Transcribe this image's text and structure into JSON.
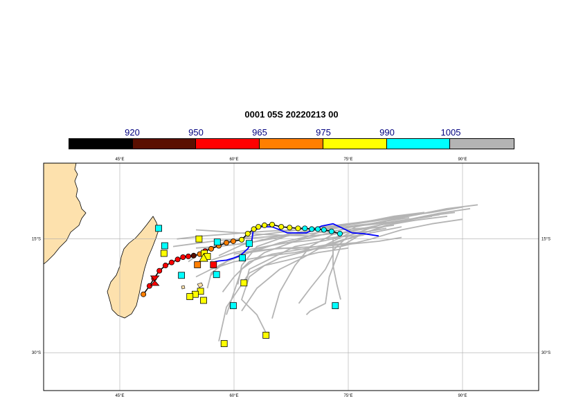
{
  "title": "0001 05S 20220213 00",
  "colorbar": {
    "labels": [
      "920",
      "950",
      "965",
      "975",
      "990",
      "1005"
    ],
    "colors": [
      "#000000",
      "#5a0f00",
      "#ff0000",
      "#ff7f00",
      "#ffff00",
      "#00ffff",
      "#b4b4b4"
    ]
  },
  "map": {
    "lon_range": [
      35,
      100
    ],
    "lat_range": [
      -35,
      -5
    ],
    "lon_ticks": [
      "45°E",
      "60°E",
      "75°E",
      "90°E"
    ],
    "lat_ticks": [
      "15°S",
      "30°S"
    ],
    "land_color": "#fde1ad",
    "ocean_color": "#ffffff",
    "grid_color": "#aaaaaa"
  },
  "chart_data": {
    "type": "scatter",
    "title": "0001 05S 20220213 00",
    "xlabel": "",
    "ylabel": "",
    "xlim": [
      35,
      100
    ],
    "ylim": [
      -35,
      -5
    ],
    "observed_track": {
      "line_color": "#000000",
      "points": [
        {
          "lon": 48.1,
          "lat": -22.3,
          "color": "#ff7f00"
        },
        {
          "lon": 48.9,
          "lat": -21.2,
          "color": "#ff0000"
        },
        {
          "lon": 49.5,
          "lat": -20.2,
          "color": "#ff0000"
        },
        {
          "lon": 50.2,
          "lat": -19.2,
          "color": "#ff0000"
        },
        {
          "lon": 51.0,
          "lat": -18.5,
          "color": "#ff0000"
        },
        {
          "lon": 51.8,
          "lat": -18.1,
          "color": "#ff0000"
        },
        {
          "lon": 52.6,
          "lat": -17.7,
          "color": "#ff0000"
        },
        {
          "lon": 53.3,
          "lat": -17.4,
          "color": "#ff0000"
        },
        {
          "lon": 54.0,
          "lat": -17.3,
          "color": "#ff0000"
        },
        {
          "lon": 54.7,
          "lat": -17.2,
          "color": "#5a0f00"
        },
        {
          "lon": 55.5,
          "lat": -17.0,
          "color": "#ff7f00"
        },
        {
          "lon": 56.2,
          "lat": -16.6,
          "color": "#ff0000"
        },
        {
          "lon": 57.0,
          "lat": -16.3,
          "color": "#ff7f00"
        },
        {
          "lon": 58.0,
          "lat": -15.9,
          "color": "#ff7f00"
        },
        {
          "lon": 59.0,
          "lat": -15.5,
          "color": "#ff7f00"
        },
        {
          "lon": 59.9,
          "lat": -15.3,
          "color": "#ff7f00"
        },
        {
          "lon": 61.0,
          "lat": -15.1,
          "color": "#ffff00"
        },
        {
          "lon": 61.8,
          "lat": -14.3,
          "color": "#ffff00"
        },
        {
          "lon": 62.6,
          "lat": -13.7,
          "color": "#ffff00"
        },
        {
          "lon": 63.2,
          "lat": -13.4,
          "color": "#ffff00"
        },
        {
          "lon": 64.0,
          "lat": -13.2,
          "color": "#ffff00"
        },
        {
          "lon": 65.0,
          "lat": -13.1,
          "color": "#ffff00"
        },
        {
          "lon": 66.2,
          "lat": -13.4,
          "color": "#ffff00"
        },
        {
          "lon": 67.3,
          "lat": -13.5,
          "color": "#ffff00"
        },
        {
          "lon": 68.4,
          "lat": -13.6,
          "color": "#ffff00"
        },
        {
          "lon": 69.3,
          "lat": -13.6,
          "color": "#00ffff"
        },
        {
          "lon": 70.2,
          "lat": -13.7,
          "color": "#00ffff"
        },
        {
          "lon": 71.0,
          "lat": -13.7,
          "color": "#00ffff"
        },
        {
          "lon": 71.8,
          "lat": -13.8,
          "color": "#00ffff"
        },
        {
          "lon": 72.8,
          "lat": -14.0,
          "color": "#00ffff"
        },
        {
          "lon": 73.9,
          "lat": -14.3,
          "color": "#00ffff"
        }
      ]
    },
    "forecast_track": {
      "line_color": "#0000ff",
      "points": [
        {
          "lon": 79.0,
          "lat": -14.6
        },
        {
          "lon": 77.0,
          "lat": -14.3
        },
        {
          "lon": 75.5,
          "lat": -14.2
        },
        {
          "lon": 74.5,
          "lat": -13.7
        },
        {
          "lon": 73.0,
          "lat": -13.0
        },
        {
          "lon": 71.5,
          "lat": -13.3
        },
        {
          "lon": 69.5,
          "lat": -14.2
        },
        {
          "lon": 67.0,
          "lat": -14.2
        },
        {
          "lon": 65.0,
          "lat": -13.4
        },
        {
          "lon": 63.5,
          "lat": -13.4
        },
        {
          "lon": 62.5,
          "lat": -14.0
        },
        {
          "lon": 62.3,
          "lat": -15.5
        },
        {
          "lon": 61.8,
          "lat": -16.3
        },
        {
          "lon": 60.8,
          "lat": -17.2
        },
        {
          "lon": 60.0,
          "lat": -17.5
        },
        {
          "lon": 59.0,
          "lat": -17.8
        },
        {
          "lon": 58.0,
          "lat": -17.9
        },
        {
          "lon": 57.5,
          "lat": -18.0
        }
      ]
    },
    "best_track_markers": [
      {
        "symbol": "hourglass",
        "lon": 49.6,
        "lat": -20.5,
        "color": "#ff0000"
      },
      {
        "symbol": "triangle",
        "lon": 56.0,
        "lat": -17.5,
        "color": "#ffff00"
      }
    ],
    "position_markers": [
      {
        "lon": 50.1,
        "lat": -13.6,
        "color": "#00ffff"
      },
      {
        "lon": 50.9,
        "lat": -15.9,
        "color": "#00ffff"
      },
      {
        "lon": 50.8,
        "lat": -16.9,
        "color": "#ffff00"
      },
      {
        "lon": 55.4,
        "lat": -15.0,
        "color": "#ffff00"
      },
      {
        "lon": 57.8,
        "lat": -15.4,
        "color": "#00ffff"
      },
      {
        "lon": 56.1,
        "lat": -16.9,
        "color": "#ffff00"
      },
      {
        "lon": 56.5,
        "lat": -17.3,
        "color": "#ffff00"
      },
      {
        "lon": 55.2,
        "lat": -18.4,
        "color": "#ff7f00"
      },
      {
        "lon": 57.3,
        "lat": -18.4,
        "color": "#ff0000"
      },
      {
        "lon": 62.0,
        "lat": -15.6,
        "color": "#00ffff"
      },
      {
        "lon": 61.1,
        "lat": -17.5,
        "color": "#00ffff"
      },
      {
        "lon": 53.1,
        "lat": -19.8,
        "color": "#00ffff"
      },
      {
        "lon": 57.7,
        "lat": -19.7,
        "color": "#00ffff"
      },
      {
        "lon": 61.3,
        "lat": -20.8,
        "color": "#ffff00"
      },
      {
        "lon": 55.6,
        "lat": -21.9,
        "color": "#ffff00"
      },
      {
        "lon": 54.9,
        "lat": -22.3,
        "color": "#ffff00"
      },
      {
        "lon": 54.2,
        "lat": -22.6,
        "color": "#ffff00"
      },
      {
        "lon": 56.0,
        "lat": -23.1,
        "color": "#ffff00"
      },
      {
        "lon": 59.9,
        "lat": -23.8,
        "color": "#00ffff"
      },
      {
        "lon": 73.3,
        "lat": -23.8,
        "color": "#00ffff"
      },
      {
        "lon": 64.2,
        "lat": -27.7,
        "color": "#ffff00"
      },
      {
        "lon": 58.7,
        "lat": -28.8,
        "color": "#ffff00"
      }
    ],
    "ensemble_tracks": [
      [
        [
          77,
          -14.5
        ],
        [
          73,
          -14.8
        ],
        [
          70,
          -15.2
        ],
        [
          66,
          -15.6
        ],
        [
          63,
          -16.3
        ],
        [
          60,
          -17.5
        ],
        [
          58,
          -18.5
        ],
        [
          57,
          -19.8
        ]
      ],
      [
        [
          78,
          -13.5
        ],
        [
          74,
          -13.8
        ],
        [
          70,
          -14.3
        ],
        [
          66,
          -14.6
        ],
        [
          62,
          -14.9
        ],
        [
          58,
          -15.2
        ],
        [
          55,
          -15.6
        ],
        [
          52,
          -16.0
        ]
      ],
      [
        [
          79,
          -12.5
        ],
        [
          75,
          -13.0
        ],
        [
          71,
          -13.5
        ],
        [
          67,
          -14.0
        ],
        [
          63,
          -14.5
        ],
        [
          59,
          -15.3
        ],
        [
          56,
          -16.5
        ],
        [
          54,
          -18.0
        ]
      ],
      [
        [
          80,
          -12.8
        ],
        [
          76,
          -13.2
        ],
        [
          72,
          -13.8
        ],
        [
          68,
          -15.3
        ],
        [
          64,
          -16.8
        ],
        [
          61,
          -19.0
        ],
        [
          60,
          -22.0
        ],
        [
          59,
          -25.0
        ]
      ],
      [
        [
          81,
          -13.2
        ],
        [
          77,
          -13.7
        ],
        [
          73,
          -14.4
        ],
        [
          70,
          -16.0
        ],
        [
          68,
          -18.5
        ],
        [
          66,
          -22.0
        ],
        [
          65,
          -25.5
        ]
      ],
      [
        [
          82,
          -13.4
        ],
        [
          78,
          -14.2
        ],
        [
          74,
          -15.2
        ],
        [
          70,
          -16.5
        ],
        [
          66,
          -17.5
        ],
        [
          62,
          -19.5
        ],
        [
          59,
          -24.0
        ],
        [
          58,
          -28.5
        ]
      ],
      [
        [
          83,
          -12.2
        ],
        [
          79,
          -12.8
        ],
        [
          75,
          -13.5
        ],
        [
          71,
          -14.6
        ],
        [
          67,
          -15.5
        ],
        [
          63,
          -16.2
        ],
        [
          60,
          -16.8
        ],
        [
          57,
          -17.8
        ]
      ],
      [
        [
          84,
          -12.5
        ],
        [
          80,
          -13.0
        ],
        [
          76,
          -13.8
        ],
        [
          72,
          -15.8
        ],
        [
          69,
          -17.5
        ],
        [
          66,
          -19.0
        ],
        [
          63,
          -21.5
        ],
        [
          61,
          -24.5
        ]
      ],
      [
        [
          85,
          -11.5
        ],
        [
          81,
          -12.0
        ],
        [
          77,
          -12.8
        ],
        [
          73,
          -13.5
        ],
        [
          69,
          -14.0
        ],
        [
          65,
          -14.8
        ],
        [
          61,
          -15.8
        ],
        [
          58,
          -17.2
        ]
      ],
      [
        [
          86,
          -12.0
        ],
        [
          82,
          -12.6
        ],
        [
          78,
          -13.4
        ],
        [
          74,
          -14.2
        ],
        [
          70,
          -14.6
        ],
        [
          66,
          -14.5
        ],
        [
          62,
          -14.3
        ],
        [
          58,
          -14.0
        ],
        [
          55,
          -13.8
        ]
      ],
      [
        [
          87,
          -11.8
        ],
        [
          83,
          -12.4
        ],
        [
          79,
          -13.2
        ],
        [
          75,
          -14.6
        ],
        [
          73,
          -16.5
        ],
        [
          73,
          -18.5
        ],
        [
          73.5,
          -21.0
        ],
        [
          74,
          -23.0
        ]
      ],
      [
        [
          88,
          -11.0
        ],
        [
          84,
          -11.8
        ],
        [
          80,
          -12.6
        ],
        [
          76,
          -13.4
        ],
        [
          73,
          -15.0
        ],
        [
          73,
          -17.0
        ],
        [
          72,
          -19.0
        ],
        [
          70,
          -21.5
        ],
        [
          68.5,
          -23.5
        ]
      ],
      [
        [
          89,
          -11.5
        ],
        [
          85,
          -12.0
        ],
        [
          81,
          -13.0
        ],
        [
          77,
          -14.2
        ],
        [
          74,
          -16.0
        ],
        [
          72.5,
          -20.0
        ],
        [
          72,
          -23.5
        ],
        [
          70,
          -24.5
        ],
        [
          69.5,
          -25.0
        ]
      ],
      [
        [
          90,
          -12.4
        ],
        [
          86,
          -13.0
        ],
        [
          82,
          -13.8
        ],
        [
          78,
          -15.0
        ],
        [
          74,
          -16.0
        ],
        [
          70,
          -16.4
        ],
        [
          66,
          -16.2
        ],
        [
          62,
          -16.8
        ],
        [
          59,
          -18.0
        ]
      ],
      [
        [
          91,
          -11.0
        ],
        [
          87,
          -11.6
        ],
        [
          83,
          -12.4
        ],
        [
          79,
          -13.0
        ],
        [
          75,
          -13.4
        ],
        [
          71,
          -13.8
        ],
        [
          67,
          -14.6
        ],
        [
          63,
          -16.0
        ],
        [
          61,
          -18.5
        ],
        [
          60.5,
          -21.0
        ]
      ],
      [
        [
          92,
          -10.5
        ],
        [
          88,
          -11.0
        ],
        [
          84,
          -11.8
        ],
        [
          80,
          -12.4
        ],
        [
          76,
          -13.0
        ],
        [
          72,
          -13.4
        ],
        [
          68,
          -13.8
        ],
        [
          64,
          -14.0
        ],
        [
          60,
          -14.3
        ],
        [
          56,
          -14.6
        ],
        [
          52.5,
          -15.0
        ]
      ],
      [
        [
          90,
          -10.8
        ],
        [
          86,
          -11.5
        ],
        [
          82,
          -12.0
        ],
        [
          78,
          -12.6
        ],
        [
          74,
          -13.2
        ],
        [
          70,
          -14.0
        ],
        [
          66,
          -14.8
        ],
        [
          62,
          -15.5
        ],
        [
          58,
          -16.0
        ],
        [
          55,
          -16.2
        ]
      ],
      [
        [
          82,
          -14.8
        ],
        [
          79,
          -15.3
        ],
        [
          75,
          -15.7
        ],
        [
          71,
          -16.0
        ],
        [
          67,
          -16.2
        ],
        [
          63,
          -16.5
        ],
        [
          60,
          -17.0
        ]
      ],
      [
        [
          76,
          -15.5
        ],
        [
          72,
          -15.8
        ],
        [
          68,
          -16.5
        ],
        [
          65,
          -17.0
        ],
        [
          62,
          -18.0
        ],
        [
          60,
          -20.0
        ],
        [
          58.5,
          -22.0
        ]
      ],
      [
        [
          75,
          -16.2
        ],
        [
          71,
          -16.8
        ],
        [
          67,
          -17.8
        ],
        [
          64,
          -18.5
        ],
        [
          62,
          -20.0
        ],
        [
          61,
          -23.0
        ],
        [
          63,
          -25.0
        ],
        [
          64.5,
          -28.0
        ]
      ],
      [
        [
          88,
          -12.0
        ],
        [
          84,
          -12.5
        ],
        [
          80,
          -13.2
        ],
        [
          76,
          -14.6
        ],
        [
          72,
          -16.0
        ],
        [
          68,
          -16.8
        ],
        [
          64,
          -17.3
        ],
        [
          60,
          -18.0
        ],
        [
          57,
          -19.0
        ],
        [
          55,
          -20.0
        ]
      ],
      [
        [
          78,
          -14.0
        ],
        [
          74,
          -14.2
        ],
        [
          70,
          -14.6
        ],
        [
          66,
          -15.5
        ],
        [
          63,
          -16.5
        ],
        [
          61,
          -17.0
        ],
        [
          59,
          -18.0
        ],
        [
          57,
          -19.5
        ],
        [
          56.5,
          -21.5
        ]
      ],
      [
        [
          80,
          -13.6
        ],
        [
          76,
          -14.3
        ],
        [
          72,
          -15.2
        ],
        [
          68,
          -16.0
        ],
        [
          65,
          -17.5
        ],
        [
          62,
          -19.0
        ],
        [
          61.5,
          -21.0
        ]
      ]
    ]
  }
}
